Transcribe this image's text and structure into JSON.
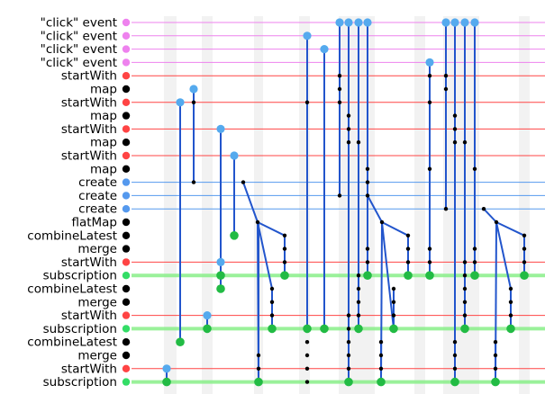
{
  "rows": [
    {
      "label": "\"click\" event",
      "color": "#ee82ee",
      "marker": "#ee82ee",
      "weight": "thin"
    },
    {
      "label": "\"click\" event",
      "color": "#ee82ee",
      "marker": "#ee82ee",
      "weight": "thin"
    },
    {
      "label": "\"click\" event",
      "color": "#ee82ee",
      "marker": "#ee82ee",
      "weight": "thin"
    },
    {
      "label": "\"click\" event",
      "color": "#ee82ee",
      "marker": "#ee82ee",
      "weight": "thin"
    },
    {
      "label": "startWith",
      "color": "#ff4444",
      "marker": "#ff4444",
      "weight": "thin"
    },
    {
      "label": "map",
      "color": "#cccccc",
      "marker": "#000000",
      "weight": "none"
    },
    {
      "label": "startWith",
      "color": "#ff4444",
      "marker": "#ff4444",
      "weight": "thin"
    },
    {
      "label": "map",
      "color": "#cccccc",
      "marker": "#000000",
      "weight": "none"
    },
    {
      "label": "startWith",
      "color": "#ff4444",
      "marker": "#ff4444",
      "weight": "thin"
    },
    {
      "label": "map",
      "color": "#cccccc",
      "marker": "#000000",
      "weight": "none"
    },
    {
      "label": "startWith",
      "color": "#ff4444",
      "marker": "#ff4444",
      "weight": "thin"
    },
    {
      "label": "map",
      "color": "#cccccc",
      "marker": "#000000",
      "weight": "none"
    },
    {
      "label": "create",
      "color": "#5599ee",
      "marker": "#5599ee",
      "weight": "thin"
    },
    {
      "label": "create",
      "color": "#5599ee",
      "marker": "#5599ee",
      "weight": "thin"
    },
    {
      "label": "create",
      "color": "#5599ee",
      "marker": "#5599ee",
      "weight": "thin"
    },
    {
      "label": "flatMap",
      "color": "#cccccc",
      "marker": "#000000",
      "weight": "none"
    },
    {
      "label": "combineLatest",
      "color": "#cccccc",
      "marker": "#000000",
      "weight": "none"
    },
    {
      "label": "merge",
      "color": "#cccccc",
      "marker": "#000000",
      "weight": "none"
    },
    {
      "label": "startWith",
      "color": "#ff4444",
      "marker": "#ff4444",
      "weight": "thin"
    },
    {
      "label": "subscription",
      "color": "#88ee88",
      "marker": "#33dd66",
      "weight": "thick"
    },
    {
      "label": "combineLatest",
      "color": "#cccccc",
      "marker": "#000000",
      "weight": "none"
    },
    {
      "label": "merge",
      "color": "#cccccc",
      "marker": "#000000",
      "weight": "none"
    },
    {
      "label": "startWith",
      "color": "#ff4444",
      "marker": "#ff4444",
      "weight": "thin"
    },
    {
      "label": "subscription",
      "color": "#88ee88",
      "marker": "#33dd66",
      "weight": "thick"
    },
    {
      "label": "combineLatest",
      "color": "#cccccc",
      "marker": "#000000",
      "weight": "none"
    },
    {
      "label": "merge",
      "color": "#cccccc",
      "marker": "#000000",
      "weight": "none"
    },
    {
      "label": "startWith",
      "color": "#ff4444",
      "marker": "#ff4444",
      "weight": "thin"
    },
    {
      "label": "subscription",
      "color": "#88ee88",
      "marker": "#33dd66",
      "weight": "thick"
    }
  ],
  "colors": {
    "edge": "#2255cc",
    "blue_node": "#55aaee",
    "green_node": "#22bb44",
    "black_node": "#000000",
    "band": "#f2f2f2"
  }
}
